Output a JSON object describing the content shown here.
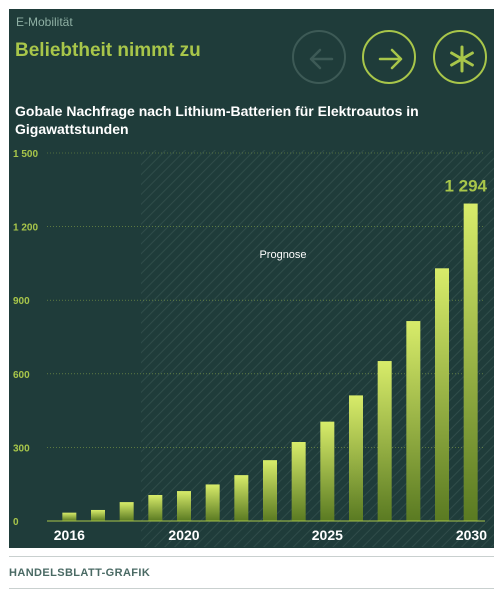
{
  "header": {
    "kicker": "E-Mobilität",
    "headline": "Beliebtheit nimmt zu"
  },
  "nav": {
    "prev_icon": "arrow-left-icon",
    "next_icon": "arrow-right-icon",
    "asterisk_icon": "asterisk-icon",
    "prev_enabled": false
  },
  "footer": {
    "source": "HANDELSBLATT-GRAFIK"
  },
  "colors": {
    "panel_bg": "#1f3c3a",
    "accent": "#a8c64a",
    "bar_top": "#d8ec6a",
    "bar_bottom": "#5a7a22",
    "forecast_hatch": "#2f4c49"
  },
  "chart_data": {
    "type": "bar",
    "title": "Gobale Nachfrage nach Lithium-Batterien für Elektroautos in Gigawattstunden",
    "categories": [
      2016,
      2017,
      2018,
      2019,
      2020,
      2021,
      2022,
      2023,
      2024,
      2025,
      2026,
      2027,
      2028,
      2029,
      2030
    ],
    "values": [
      34,
      45,
      77,
      106,
      122,
      149,
      187,
      248,
      322,
      405,
      512,
      652,
      815,
      1030,
      1294
    ],
    "x_tick_labels": [
      "2016",
      "2020",
      "2025",
      "2030"
    ],
    "y_ticks": [
      0,
      300,
      600,
      900,
      1200,
      1500
    ],
    "y_tick_labels": [
      "0",
      "300",
      "600",
      "900",
      "1 200",
      "1 500"
    ],
    "ylim": [
      0,
      1500
    ],
    "grid": true,
    "highlight_label": "1 294",
    "forecast_label": "Prognose",
    "forecast_start_year": 2018.5
  }
}
